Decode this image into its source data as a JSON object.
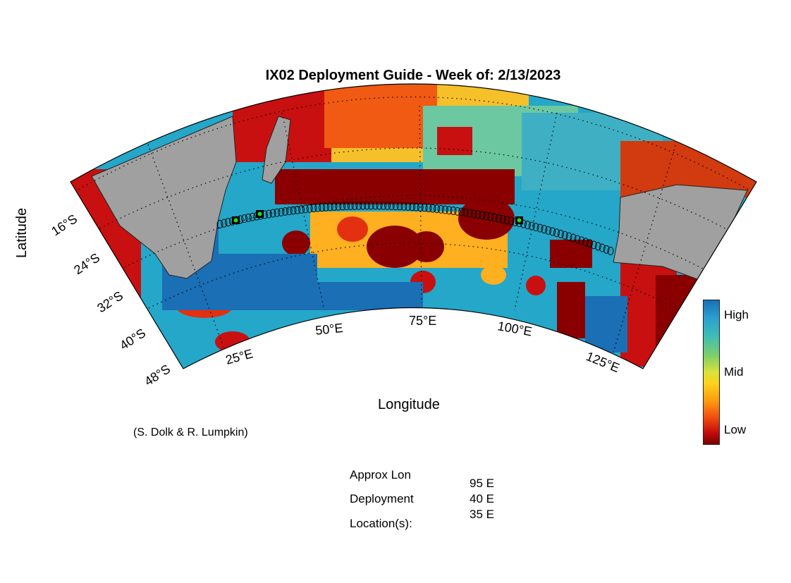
{
  "title": "IX02 Deployment Guide - Week of: 2/13/2023",
  "axes": {
    "xlabel": "Longitude",
    "ylabel": "Latitude",
    "lat_ticks": [
      "16°S",
      "24°S",
      "32°S",
      "40°S",
      "48°S"
    ],
    "lon_ticks": [
      "25°E",
      "50°E",
      "75°E",
      "100°E",
      "125°E"
    ]
  },
  "credit": "(S. Dolk & R. Lumpkin)",
  "colorbar": {
    "high": "High",
    "mid": "Mid",
    "low": "Low"
  },
  "deployment": {
    "label_line1": "Approx Lon",
    "label_line2": "Deployment",
    "label_line3": "Location(s):",
    "values": [
      "95 E",
      "40 E",
      "35 E"
    ]
  },
  "colors": {
    "land": "#a0a0a0",
    "high": "#1a6fb5",
    "mid": "#ffd21a",
    "low": "#7a0000",
    "marker": "#22dd22"
  },
  "chart_data": {
    "type": "heatmap",
    "projection": "conic",
    "lon_range": [
      15,
      130
    ],
    "lat_range": [
      -48,
      -10
    ],
    "transect_markers_lon": [
      35,
      40,
      95
    ]
  }
}
